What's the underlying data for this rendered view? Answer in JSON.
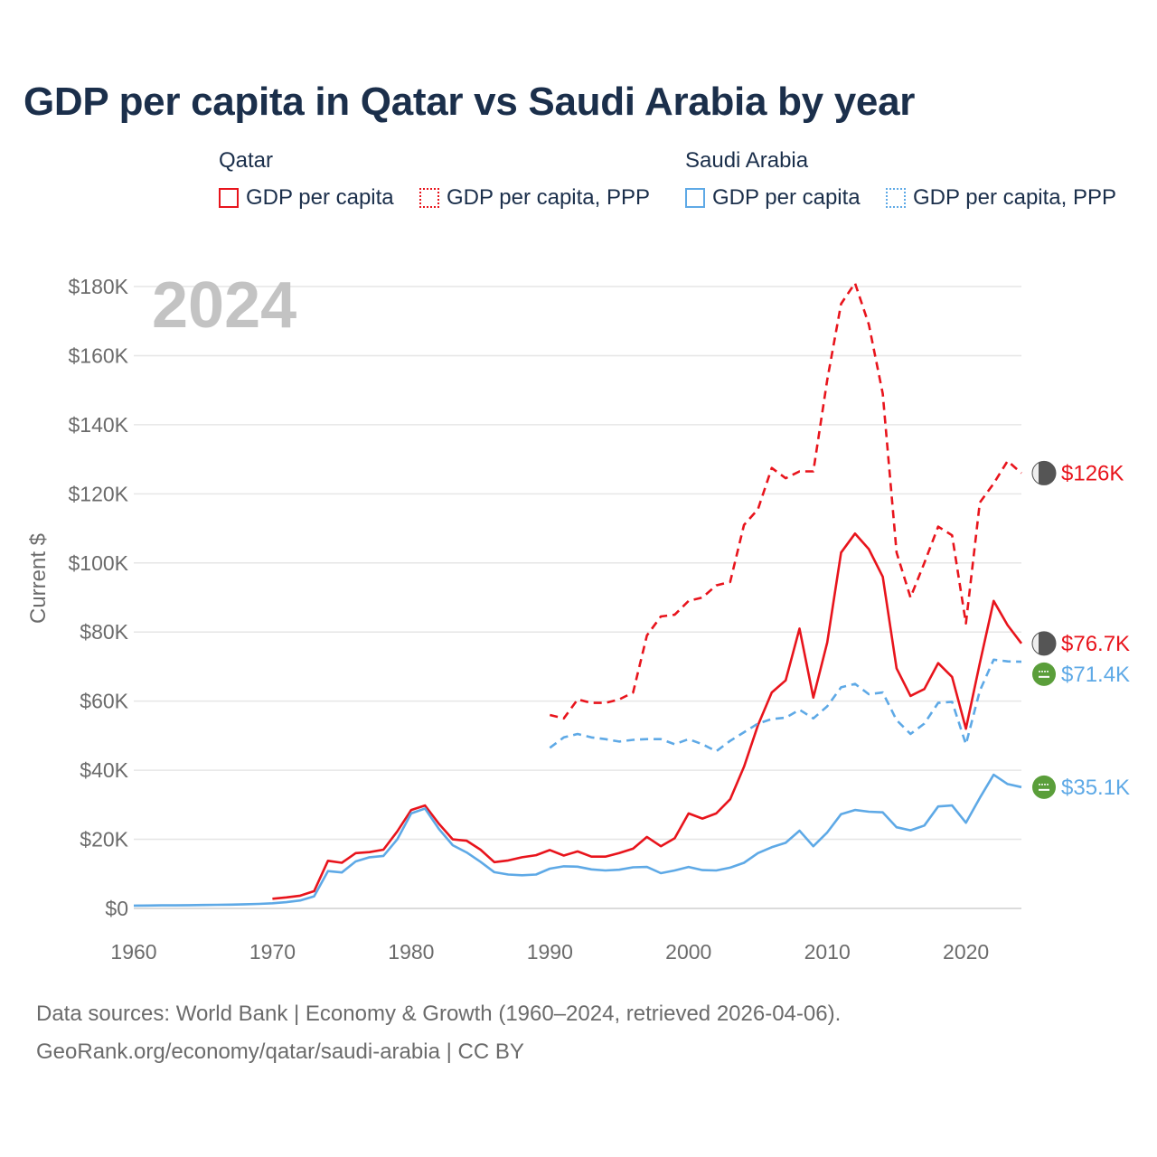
{
  "title": "GDP per capita in Qatar vs Saudi Arabia by year",
  "legend": {
    "qatar": {
      "name": "Qatar",
      "gdp": "GDP per capita",
      "ppp": "GDP per capita, PPP"
    },
    "saudi": {
      "name": "Saudi Arabia",
      "gdp": "GDP per capita",
      "ppp": "GDP per capita, PPP"
    }
  },
  "colors": {
    "qatar": "#e8141c",
    "saudi": "#5ea9e6",
    "grid": "#e6e6e6",
    "axis": "#6b6b6b",
    "year_watermark": "#c3c3c3",
    "qatar_flag": "#555555",
    "saudi_flag": "#5a9e3a"
  },
  "chart_data": {
    "type": "line",
    "title": "GDP per capita in Qatar vs Saudi Arabia by year",
    "ylabel": "Current $",
    "xlabel": "",
    "xlim": [
      1960,
      2024
    ],
    "ylim": [
      0,
      180000
    ],
    "grid": true,
    "year_label": "2024",
    "x_ticks": [
      1960,
      1970,
      1980,
      1990,
      2000,
      2010,
      2020
    ],
    "x_tick_labels": [
      "1960",
      "1970",
      "1980",
      "1990",
      "2000",
      "2010",
      "2020"
    ],
    "y_ticks": [
      0,
      20000,
      40000,
      60000,
      80000,
      100000,
      120000,
      140000,
      160000,
      180000
    ],
    "y_tick_labels": [
      "$0",
      "$20K",
      "$40K",
      "$60K",
      "$80K",
      "$100K",
      "$120K",
      "$140K",
      "$160K",
      "$180K"
    ],
    "series": [
      {
        "name": "Qatar GDP per capita",
        "country": "qatar",
        "style": "solid",
        "end_label": "$76.7K",
        "x": [
          1970,
          1971,
          1972,
          1973,
          1974,
          1975,
          1976,
          1977,
          1978,
          1979,
          1980,
          1981,
          1982,
          1983,
          1984,
          1985,
          1986,
          1987,
          1988,
          1989,
          1990,
          1991,
          1992,
          1993,
          1994,
          1995,
          1996,
          1997,
          1998,
          1999,
          2000,
          2001,
          2002,
          2003,
          2004,
          2005,
          2006,
          2007,
          2008,
          2009,
          2010,
          2011,
          2012,
          2013,
          2014,
          2015,
          2016,
          2017,
          2018,
          2019,
          2020,
          2021,
          2022,
          2023,
          2024
        ],
        "values": [
          2800,
          3200,
          3700,
          5000,
          13800,
          13200,
          16000,
          16300,
          17000,
          22300,
          28500,
          29800,
          24500,
          20000,
          19600,
          17000,
          13400,
          13900,
          14800,
          15400,
          16900,
          15300,
          16500,
          15000,
          15000,
          16000,
          17300,
          20700,
          18000,
          20300,
          27500,
          26000,
          27500,
          31600,
          41000,
          53000,
          62500,
          66000,
          81000,
          61000,
          77000,
          103000,
          108500,
          104000,
          96000,
          69500,
          61500,
          63500,
          71000,
          67000,
          52000,
          71000,
          89000,
          82000,
          76700
        ]
      },
      {
        "name": "Qatar GDP per capita, PPP",
        "country": "qatar",
        "style": "dashed",
        "end_label": "$126K",
        "x": [
          1990,
          1991,
          1992,
          1993,
          1994,
          1995,
          1996,
          1997,
          1998,
          1999,
          2000,
          2001,
          2002,
          2003,
          2004,
          2005,
          2006,
          2007,
          2008,
          2009,
          2010,
          2011,
          2012,
          2013,
          2014,
          2015,
          2016,
          2017,
          2018,
          2019,
          2020,
          2021,
          2022,
          2023,
          2024
        ],
        "values": [
          56000,
          55000,
          60500,
          59500,
          59500,
          60500,
          62500,
          79000,
          84500,
          85000,
          89000,
          90000,
          93500,
          94500,
          111000,
          115500,
          127500,
          124500,
          126500,
          126500,
          153000,
          175000,
          181000,
          169000,
          149000,
          103000,
          90000,
          100000,
          110500,
          108000,
          82500,
          117500,
          123000,
          129500,
          126000
        ]
      },
      {
        "name": "Saudi Arabia GDP per capita",
        "country": "saudi",
        "style": "solid",
        "end_label": "$35.1K",
        "x": [
          1960,
          1961,
          1962,
          1963,
          1964,
          1965,
          1966,
          1967,
          1968,
          1969,
          1970,
          1971,
          1972,
          1973,
          1974,
          1975,
          1976,
          1977,
          1978,
          1979,
          1980,
          1981,
          1982,
          1983,
          1984,
          1985,
          1986,
          1987,
          1988,
          1989,
          1990,
          1991,
          1992,
          1993,
          1994,
          1995,
          1996,
          1997,
          1998,
          1999,
          2000,
          2001,
          2002,
          2003,
          2004,
          2005,
          2006,
          2007,
          2008,
          2009,
          2010,
          2011,
          2012,
          2013,
          2014,
          2015,
          2016,
          2017,
          2018,
          2019,
          2020,
          2021,
          2022,
          2023,
          2024
        ],
        "values": [
          800,
          850,
          880,
          900,
          950,
          1000,
          1050,
          1100,
          1200,
          1300,
          1500,
          1800,
          2300,
          3500,
          10800,
          10400,
          13600,
          14800,
          15200,
          20000,
          27500,
          28900,
          23000,
          18300,
          16200,
          13500,
          10500,
          9800,
          9600,
          9800,
          11500,
          12200,
          12100,
          11300,
          11000,
          11200,
          11900,
          12000,
          10200,
          11000,
          12000,
          11100,
          11000,
          11800,
          13200,
          16000,
          17700,
          19000,
          22500,
          18000,
          22000,
          27300,
          28500,
          28000,
          27800,
          23500,
          22600,
          24000,
          29500,
          29800,
          24800,
          32000,
          38700,
          36000,
          35100
        ]
      },
      {
        "name": "Saudi Arabia GDP per capita, PPP",
        "country": "saudi",
        "style": "dashed",
        "end_label": "$71.4K",
        "x": [
          1990,
          1991,
          1992,
          1993,
          1994,
          1995,
          1996,
          1997,
          1998,
          1999,
          2000,
          2001,
          2002,
          2003,
          2004,
          2005,
          2006,
          2007,
          2008,
          2009,
          2010,
          2011,
          2012,
          2013,
          2014,
          2015,
          2016,
          2017,
          2018,
          2019,
          2020,
          2021,
          2022,
          2023,
          2024
        ],
        "values": [
          46500,
          49500,
          50500,
          49500,
          49000,
          48300,
          48800,
          49000,
          49000,
          47500,
          49000,
          47500,
          45500,
          48500,
          51000,
          53500,
          54800,
          55200,
          57500,
          55000,
          58500,
          64000,
          65000,
          62000,
          62500,
          54500,
          50500,
          53500,
          59500,
          59800,
          47500,
          63000,
          72000,
          71500,
          71400
        ]
      }
    ]
  },
  "footer": {
    "line1": "Data sources: World Bank | Economy & Growth (1960–2024, retrieved 2026-04-06).",
    "line2": "GeoRank.org/economy/qatar/saudi-arabia | CC BY"
  }
}
